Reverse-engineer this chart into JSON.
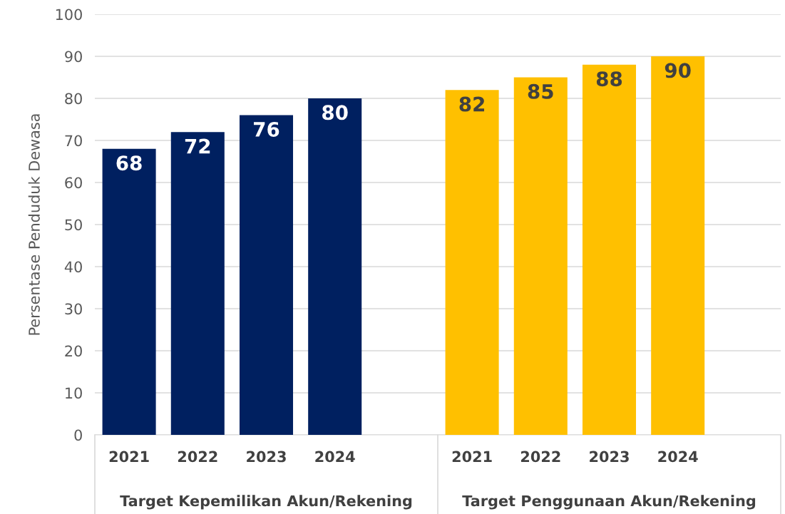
{
  "chart_data": {
    "type": "bar",
    "ylabel": "Persentase Penduduk Dewasa",
    "categories": [
      "2021",
      "2022",
      "2023",
      "2024",
      null,
      "2021",
      "2022",
      "2023",
      "2024",
      null
    ],
    "series": [
      {
        "color": "#002060",
        "values": [
          68,
          72,
          76,
          80,
          null,
          null,
          null,
          null,
          null,
          null
        ]
      },
      {
        "color": "#ffc000",
        "values": [
          null,
          null,
          null,
          null,
          null,
          82,
          85,
          88,
          90,
          null
        ]
      }
    ],
    "annotations": [
      "Target Kepemilikan Akun/Rekening",
      "Target Penggunaan Akun/Rekening"
    ],
    "ylim": [
      0,
      100
    ],
    "yticks": [
      0,
      10,
      20,
      30,
      40,
      50,
      60,
      70,
      80,
      90,
      100
    ],
    "grid": "y",
    "data_labels": true,
    "legend": false
  }
}
